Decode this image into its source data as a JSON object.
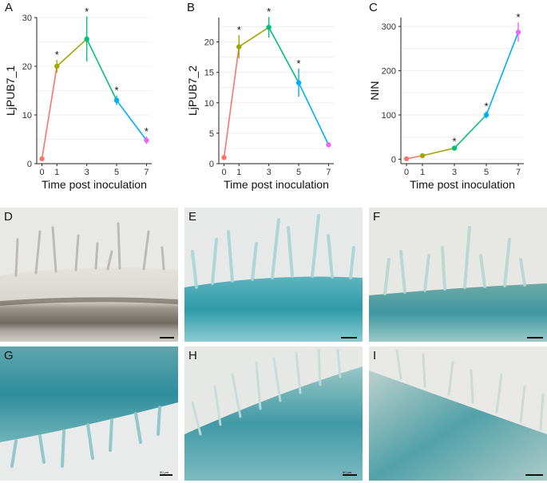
{
  "figure": {
    "panel_labels": [
      "A",
      "B",
      "C",
      "D",
      "E",
      "F",
      "G",
      "H",
      "I"
    ],
    "micro_scale_label": "50 µm"
  },
  "chart_data": [
    {
      "type": "line",
      "panel": "A",
      "ylabel": "LjPUB7_1",
      "xlabel": "Time post inoculation",
      "x": [
        0,
        1,
        3,
        5,
        7
      ],
      "values": [
        1.0,
        20.0,
        25.6,
        13.0,
        4.8
      ],
      "errors": [
        0.2,
        1.3,
        4.6,
        1.0,
        0.8
      ],
      "significant": [
        false,
        true,
        true,
        true,
        true
      ],
      "ylim": [
        0,
        30
      ],
      "yticks": [
        0,
        10,
        20,
        30
      ],
      "colors": [
        "#F8766D",
        "#A3A500",
        "#00BF7D",
        "#00B0F6",
        "#E76BF3"
      ]
    },
    {
      "type": "line",
      "panel": "B",
      "ylabel": "LjPUB7_2",
      "xlabel": "Time post inoculation",
      "x": [
        0,
        1,
        3,
        5,
        7
      ],
      "values": [
        1.0,
        19.2,
        22.4,
        13.3,
        3.1
      ],
      "errors": [
        0.1,
        1.9,
        1.7,
        2.3,
        0.2
      ],
      "significant": [
        false,
        true,
        true,
        true,
        false
      ],
      "ylim": [
        0,
        24
      ],
      "yticks": [
        0,
        5,
        10,
        15,
        20
      ],
      "colors": [
        "#F8766D",
        "#A3A500",
        "#00BF7D",
        "#00B0F6",
        "#E76BF3"
      ]
    },
    {
      "type": "line",
      "panel": "C",
      "ylabel": "NIN",
      "xlabel": "Time post inoculation",
      "x": [
        0,
        1,
        3,
        5,
        7
      ],
      "values": [
        1,
        8,
        25,
        100,
        287
      ],
      "errors": [
        0.5,
        2,
        4,
        8,
        22
      ],
      "significant": [
        false,
        false,
        true,
        true,
        true
      ],
      "ylim": [
        -10,
        320
      ],
      "yticks": [
        0,
        100,
        200,
        300
      ],
      "colors": [
        "#F8766D",
        "#A3A500",
        "#00BF7D",
        "#00B0F6",
        "#E76BF3"
      ]
    }
  ]
}
